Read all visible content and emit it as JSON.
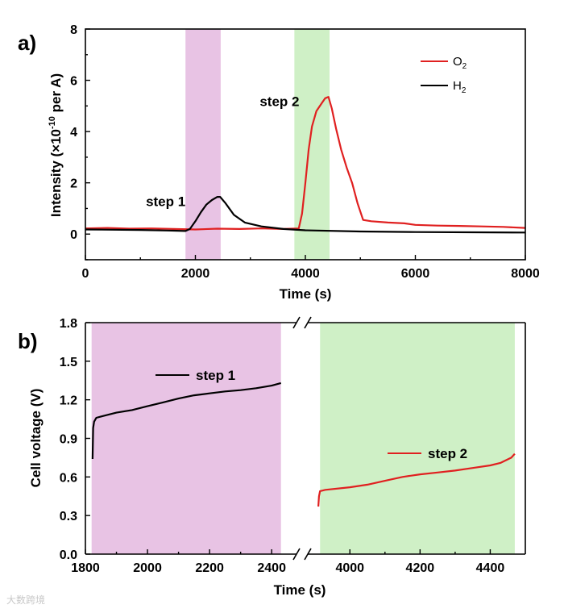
{
  "chart_data": [
    {
      "panel": "a)",
      "type": "line",
      "xlabel": "Time (s)",
      "ylabel_prefix": "Intensity (×10",
      "ylabel_exp": "-10",
      "ylabel_suffix": " per A)",
      "xlim": [
        0,
        8000
      ],
      "ylim": [
        -1,
        8
      ],
      "xticks": [
        0,
        2000,
        4000,
        6000,
        8000
      ],
      "yticks": [
        0,
        2,
        4,
        6,
        8
      ],
      "legend_position": "top-right",
      "shaded_regions": [
        {
          "x0": 1820,
          "x1": 2460,
          "color": "#e8c3e4"
        },
        {
          "x0": 3800,
          "x1": 4440,
          "color": "#cff0c6"
        }
      ],
      "annotations": [
        {
          "text": "step 1",
          "x": 1100,
          "y": 1.1
        },
        {
          "text": "step 2",
          "x": 3170,
          "y": 5.0
        }
      ],
      "series": [
        {
          "name": "O",
          "name_sub": "2",
          "color": "#e02020",
          "points": [
            [
              0,
              0.22
            ],
            [
              400,
              0.24
            ],
            [
              800,
              0.21
            ],
            [
              1200,
              0.22
            ],
            [
              1600,
              0.2
            ],
            [
              2000,
              0.18
            ],
            [
              2400,
              0.21
            ],
            [
              2800,
              0.2
            ],
            [
              3200,
              0.22
            ],
            [
              3600,
              0.2
            ],
            [
              3880,
              0.22
            ],
            [
              3940,
              0.8
            ],
            [
              4000,
              2.0
            ],
            [
              4060,
              3.3
            ],
            [
              4120,
              4.2
            ],
            [
              4200,
              4.8
            ],
            [
              4280,
              5.05
            ],
            [
              4360,
              5.3
            ],
            [
              4420,
              5.35
            ],
            [
              4480,
              4.9
            ],
            [
              4560,
              4.1
            ],
            [
              4650,
              3.3
            ],
            [
              4750,
              2.6
            ],
            [
              4850,
              2.0
            ],
            [
              4950,
              1.2
            ],
            [
              5050,
              0.55
            ],
            [
              5200,
              0.5
            ],
            [
              5500,
              0.45
            ],
            [
              5800,
              0.42
            ],
            [
              6000,
              0.36
            ],
            [
              6400,
              0.33
            ],
            [
              6800,
              0.32
            ],
            [
              7200,
              0.3
            ],
            [
              7600,
              0.28
            ],
            [
              8000,
              0.24
            ]
          ]
        },
        {
          "name": "H",
          "name_sub": "2",
          "color": "#000000",
          "points": [
            [
              0,
              0.18
            ],
            [
              500,
              0.17
            ],
            [
              1000,
              0.16
            ],
            [
              1500,
              0.14
            ],
            [
              1820,
              0.12
            ],
            [
              1900,
              0.2
            ],
            [
              2000,
              0.5
            ],
            [
              2100,
              0.85
            ],
            [
              2200,
              1.15
            ],
            [
              2300,
              1.33
            ],
            [
              2400,
              1.45
            ],
            [
              2450,
              1.45
            ],
            [
              2550,
              1.2
            ],
            [
              2700,
              0.75
            ],
            [
              2900,
              0.45
            ],
            [
              3200,
              0.3
            ],
            [
              3600,
              0.2
            ],
            [
              4000,
              0.15
            ],
            [
              5000,
              0.1
            ],
            [
              6000,
              0.08
            ],
            [
              7000,
              0.07
            ],
            [
              8000,
              0.06
            ]
          ]
        }
      ]
    },
    {
      "panel": "b)",
      "type": "line",
      "xlabel": "Time (s)",
      "ylabel": "Cell voltage (V)",
      "xlim_left": [
        1800,
        2480
      ],
      "xlim_right": [
        3880,
        4500
      ],
      "xticks_left": [
        1800,
        2000,
        2200,
        2400
      ],
      "xticks_right": [
        4000,
        4200,
        4400
      ],
      "ylim": [
        0,
        1.8
      ],
      "yticks": [
        "0.0",
        "0.3",
        "0.6",
        "0.9",
        "1.2",
        "1.5",
        "1.8"
      ],
      "shaded_regions": [
        {
          "segment": "left",
          "x0": 1820,
          "x1": 2430,
          "color": "#e8c3e4"
        },
        {
          "segment": "right",
          "x0": 3915,
          "x1": 4470,
          "color": "#cff0c6"
        }
      ],
      "series": [
        {
          "name": "step 1",
          "segment": "left",
          "color": "#000000",
          "points": [
            [
              1823,
              0.74
            ],
            [
              1825,
              0.98
            ],
            [
              1828,
              1.03
            ],
            [
              1835,
              1.06
            ],
            [
              1850,
              1.07
            ],
            [
              1900,
              1.1
            ],
            [
              1950,
              1.12
            ],
            [
              2000,
              1.15
            ],
            [
              2050,
              1.18
            ],
            [
              2100,
              1.21
            ],
            [
              2150,
              1.235
            ],
            [
              2200,
              1.25
            ],
            [
              2250,
              1.265
            ],
            [
              2300,
              1.275
            ],
            [
              2350,
              1.29
            ],
            [
              2400,
              1.31
            ],
            [
              2430,
              1.33
            ]
          ]
        },
        {
          "name": "step 2",
          "segment": "right",
          "color": "#e02020",
          "points": [
            [
              3910,
              0.37
            ],
            [
              3912,
              0.45
            ],
            [
              3915,
              0.49
            ],
            [
              3930,
              0.5
            ],
            [
              4000,
              0.52
            ],
            [
              4050,
              0.54
            ],
            [
              4100,
              0.57
            ],
            [
              4150,
              0.6
            ],
            [
              4200,
              0.62
            ],
            [
              4250,
              0.635
            ],
            [
              4300,
              0.65
            ],
            [
              4350,
              0.67
            ],
            [
              4400,
              0.69
            ],
            [
              4430,
              0.71
            ],
            [
              4460,
              0.75
            ],
            [
              4470,
              0.78
            ]
          ]
        }
      ],
      "legend_entries": [
        {
          "label": "step 1",
          "color": "#000000"
        },
        {
          "label": "step 2",
          "color": "#e02020"
        }
      ]
    }
  ],
  "watermark": "大数跨境"
}
